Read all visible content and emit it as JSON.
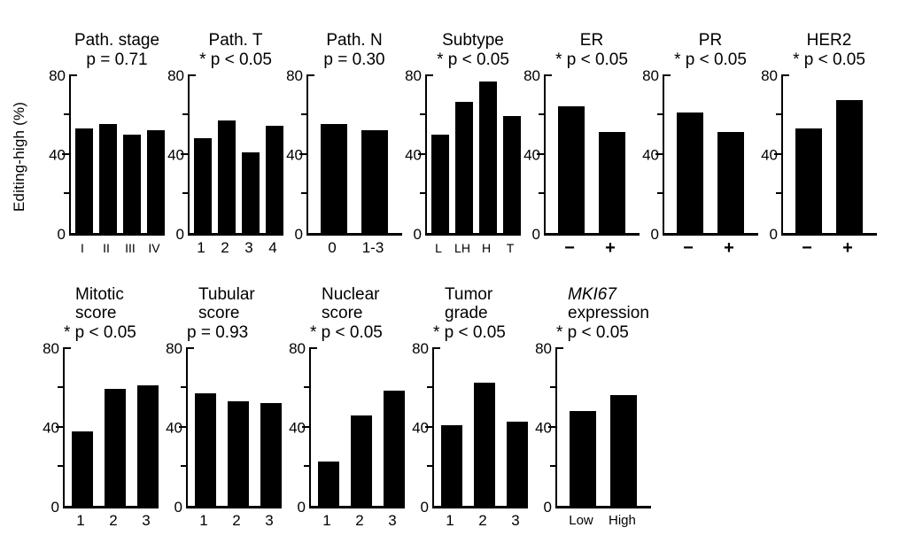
{
  "figure": {
    "background": "#ffffff",
    "bar_color": "#000000",
    "text_color": "#000000",
    "y_axis_title": "Editing-high (%)",
    "axis": {
      "ymin": 0,
      "ymax": 80,
      "tick_labels": {
        "top": "80",
        "mid": "40",
        "bottom": "0"
      },
      "minor_ticks": [
        20,
        60
      ],
      "grid": "off",
      "legend": "none"
    }
  },
  "chart_data": [
    {
      "id": "path-stage",
      "row": 1,
      "type": "bar",
      "title_lines": [
        "Path. stage"
      ],
      "p_label": "p = 0.71",
      "significant": false,
      "categories": [
        "I",
        "II",
        "III",
        "IV"
      ],
      "values": [
        52,
        54,
        49,
        51
      ],
      "ylim": [
        0,
        80
      ],
      "ylabel": "Editing-high (%)",
      "label_style": "roman"
    },
    {
      "id": "path-t",
      "row": 1,
      "type": "bar",
      "title_lines": [
        "Path. T"
      ],
      "p_label": "* p < 0.05",
      "significant": true,
      "categories": [
        "1",
        "2",
        "3",
        "4"
      ],
      "values": [
        47,
        56,
        40,
        53
      ],
      "ylim": [
        0,
        80
      ],
      "label_style": "normal"
    },
    {
      "id": "path-n",
      "row": 1,
      "type": "bar",
      "title_lines": [
        "Path. N"
      ],
      "p_label": "p = 0.30",
      "significant": false,
      "categories": [
        "0",
        "1-3"
      ],
      "values": [
        54,
        51
      ],
      "ylim": [
        0,
        80
      ],
      "label_style": "normal"
    },
    {
      "id": "subtype",
      "row": 1,
      "type": "bar",
      "title_lines": [
        "Subtype"
      ],
      "p_label": "* p < 0.05",
      "significant": true,
      "categories": [
        "L",
        "LH",
        "H",
        "T"
      ],
      "values": [
        49,
        65,
        75,
        58
      ],
      "ylim": [
        0,
        80
      ],
      "label_style": "small"
    },
    {
      "id": "er",
      "row": 1,
      "type": "bar",
      "title_lines": [
        "ER"
      ],
      "p_label": "* p < 0.05",
      "significant": true,
      "categories": [
        "−",
        "+"
      ],
      "values": [
        63,
        50
      ],
      "ylim": [
        0,
        80
      ],
      "label_style": "plusminus"
    },
    {
      "id": "pr",
      "row": 1,
      "type": "bar",
      "title_lines": [
        "PR"
      ],
      "p_label": "* p < 0.05",
      "significant": true,
      "categories": [
        "−",
        "+"
      ],
      "values": [
        60,
        50
      ],
      "ylim": [
        0,
        80
      ],
      "label_style": "plusminus"
    },
    {
      "id": "her2",
      "row": 1,
      "type": "bar",
      "title_lines": [
        "HER2"
      ],
      "p_label": "* p < 0.05",
      "significant": true,
      "categories": [
        "−",
        "+"
      ],
      "values": [
        52,
        66
      ],
      "ylim": [
        0,
        80
      ],
      "label_style": "plusminus"
    },
    {
      "id": "mitotic-score",
      "row": 2,
      "type": "bar",
      "title_lines": [
        "Mitotic",
        "score"
      ],
      "p_label": "* p < 0.05",
      "significant": true,
      "categories": [
        "1",
        "2",
        "3"
      ],
      "values": [
        37,
        58,
        60
      ],
      "ylim": [
        0,
        80
      ],
      "label_style": "normal"
    },
    {
      "id": "tubular-score",
      "row": 2,
      "type": "bar",
      "title_lines": [
        "Tubular",
        "score"
      ],
      "p_label": "p = 0.93",
      "significant": false,
      "categories": [
        "1",
        "2",
        "3"
      ],
      "values": [
        56,
        52,
        51
      ],
      "ylim": [
        0,
        80
      ],
      "label_style": "normal"
    },
    {
      "id": "nuclear-score",
      "row": 2,
      "type": "bar",
      "title_lines": [
        "Nuclear",
        "score"
      ],
      "p_label": "* p < 0.05",
      "significant": true,
      "categories": [
        "1",
        "2",
        "3"
      ],
      "values": [
        22,
        45,
        57
      ],
      "ylim": [
        0,
        80
      ],
      "label_style": "normal"
    },
    {
      "id": "tumor-grade",
      "row": 2,
      "type": "bar",
      "title_lines": [
        "Tumor",
        "grade"
      ],
      "p_label": "* p < 0.05",
      "significant": true,
      "categories": [
        "1",
        "2",
        "3"
      ],
      "values": [
        40,
        61,
        42
      ],
      "ylim": [
        0,
        80
      ],
      "label_style": "normal"
    },
    {
      "id": "mki67-expression",
      "row": 2,
      "type": "bar",
      "title_lines": [
        "MKI67",
        "expression"
      ],
      "italic_title_lines": [
        0
      ],
      "p_label": "* p < 0.05",
      "significant": true,
      "categories": [
        "Low",
        "High"
      ],
      "values": [
        47,
        55
      ],
      "ylim": [
        0,
        80
      ],
      "label_style": "medium"
    }
  ]
}
